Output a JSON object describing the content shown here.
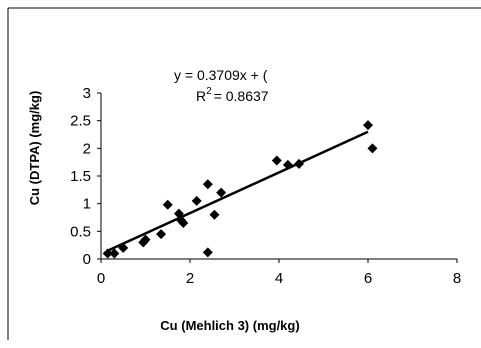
{
  "chart_data": {
    "type": "scatter",
    "title": "",
    "xlabel": "Cu (Mehlich 3) (mg/kg)",
    "ylabel": "Cu (DTPA) (mg/kg)",
    "xlim": [
      0,
      8
    ],
    "ylim": [
      0,
      3
    ],
    "x_ticks": [
      "0",
      "2",
      "4",
      "6",
      "8"
    ],
    "y_ticks": [
      "0",
      "0.5",
      "1",
      "1.5",
      "2",
      "2.5",
      "3"
    ],
    "grid": false,
    "legend": "none",
    "marker_color": "#000000",
    "series": [
      {
        "marker": "diamond",
        "points": [
          {
            "x": 0.15,
            "y": 0.1
          },
          {
            "x": 0.3,
            "y": 0.1
          },
          {
            "x": 0.5,
            "y": 0.2
          },
          {
            "x": 0.95,
            "y": 0.3
          },
          {
            "x": 1.0,
            "y": 0.35
          },
          {
            "x": 1.35,
            "y": 0.45
          },
          {
            "x": 1.5,
            "y": 0.98
          },
          {
            "x": 1.75,
            "y": 0.82
          },
          {
            "x": 1.8,
            "y": 0.7
          },
          {
            "x": 1.85,
            "y": 0.65
          },
          {
            "x": 2.15,
            "y": 1.05
          },
          {
            "x": 2.4,
            "y": 1.35
          },
          {
            "x": 2.4,
            "y": 0.12
          },
          {
            "x": 2.55,
            "y": 0.8
          },
          {
            "x": 2.7,
            "y": 1.2
          },
          {
            "x": 3.95,
            "y": 1.78
          },
          {
            "x": 4.2,
            "y": 1.7
          },
          {
            "x": 4.45,
            "y": 1.72
          },
          {
            "x": 6.0,
            "y": 2.42
          },
          {
            "x": 6.1,
            "y": 2.0
          }
        ]
      }
    ],
    "trendline": {
      "type": "linear",
      "x_start": 0.15,
      "y_start": 0.15,
      "x_end": 6.0,
      "y_end": 2.3,
      "equation": "y = 0.3709x + (",
      "r2_label": "R",
      "r2_sup": "2",
      "r2_value": "= 0.8637"
    }
  }
}
